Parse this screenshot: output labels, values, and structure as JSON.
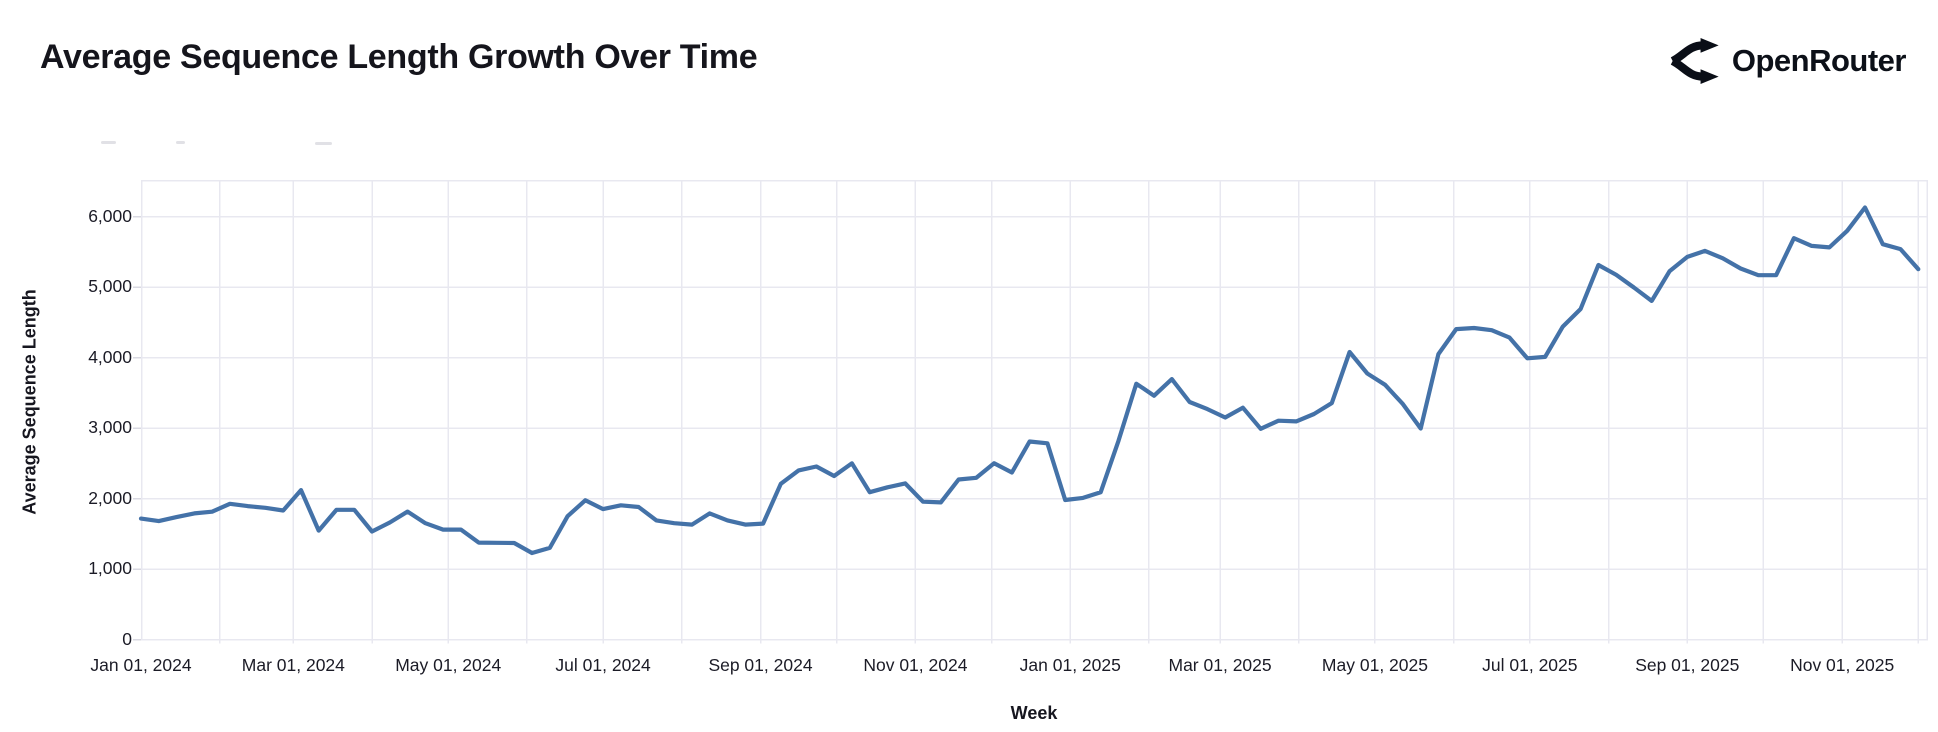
{
  "header": {
    "title": "Average Sequence Length Growth Over Time",
    "brand": {
      "name": "OpenRouter",
      "icon": "openrouter-fork-icon"
    }
  },
  "colors": {
    "line": "#4472a8",
    "grid": "#e8e8f0",
    "tick": "#d9d9e2",
    "text": "#1b1b26",
    "title": "#15151c",
    "logo": "#0a0e17"
  },
  "chart_data": {
    "type": "line",
    "title": "Average Sequence Length Growth Over Time",
    "xlabel": "Week",
    "ylabel": "Average Sequence Length",
    "x_start": "Jan 01, 2024",
    "x_frequency": "weekly",
    "n_points": 101,
    "ylim": [
      0,
      6520
    ],
    "grid": true,
    "legend": "none",
    "y_ticks": [
      {
        "value": 0,
        "label": "0"
      },
      {
        "value": 1000,
        "label": "1,000"
      },
      {
        "value": 2000,
        "label": "2,000"
      },
      {
        "value": 3000,
        "label": "3,000"
      },
      {
        "value": 4000,
        "label": "4,000"
      },
      {
        "value": 5000,
        "label": "5,000"
      },
      {
        "value": 6000,
        "label": "6,000"
      }
    ],
    "x_ticks": [
      {
        "week": 0,
        "label": "Jan 01, 2024"
      },
      {
        "week": 8.5714,
        "label": "Mar 01, 2024"
      },
      {
        "week": 17.2857,
        "label": "May 01, 2024"
      },
      {
        "week": 26.0,
        "label": "Jul 01, 2024"
      },
      {
        "week": 34.8571,
        "label": "Sep 01, 2024"
      },
      {
        "week": 43.5714,
        "label": "Nov 01, 2024"
      },
      {
        "week": 52.2857,
        "label": "Jan 01, 2025"
      },
      {
        "week": 60.7143,
        "label": "Mar 01, 2025"
      },
      {
        "week": 69.4286,
        "label": "May 01, 2025"
      },
      {
        "week": 78.1429,
        "label": "Jul 01, 2025"
      },
      {
        "week": 87.0,
        "label": "Sep 01, 2025"
      },
      {
        "week": 95.7143,
        "label": "Nov 01, 2025"
      }
    ],
    "month_gridline_weeks": [
      4.4286,
      8.5714,
      13.0,
      17.2857,
      21.7143,
      26.0,
      30.4286,
      34.8571,
      39.1429,
      43.5714,
      47.8571,
      52.2857,
      56.7143,
      60.7143,
      65.1429,
      69.4286,
      73.8571,
      78.1429,
      82.5714,
      87.0,
      91.2857,
      95.7143,
      100.0
    ],
    "series": [
      {
        "name": "Average Sequence Length",
        "color": "#4472a8",
        "values": [
          1715,
          1680,
          1737,
          1789,
          1813,
          1926,
          1893,
          1869,
          1830,
          2120,
          1545,
          1840,
          1840,
          1533,
          1660,
          1815,
          1650,
          1560,
          1560,
          1375,
          1372,
          1370,
          1227,
          1300,
          1750,
          1975,
          1850,
          1905,
          1880,
          1690,
          1650,
          1630,
          1790,
          1690,
          1630,
          1645,
          2210,
          2400,
          2455,
          2320,
          2500,
          2090,
          2160,
          2215,
          1955,
          1945,
          2270,
          2295,
          2500,
          2370,
          2810,
          2785,
          1980,
          2010,
          2090,
          2820,
          3630,
          3460,
          3695,
          3370,
          3270,
          3150,
          3290,
          2990,
          3105,
          3095,
          3200,
          3355,
          4080,
          3775,
          3615,
          3340,
          2995,
          4050,
          4405,
          4420,
          4390,
          4285,
          3990,
          4010,
          4440,
          4690,
          5315,
          5175,
          4995,
          4805,
          5225,
          5430,
          5515,
          5410,
          5265,
          5170,
          5170,
          5695,
          5585,
          5565,
          5800,
          6130,
          5610,
          5540,
          5255
        ]
      }
    ]
  }
}
